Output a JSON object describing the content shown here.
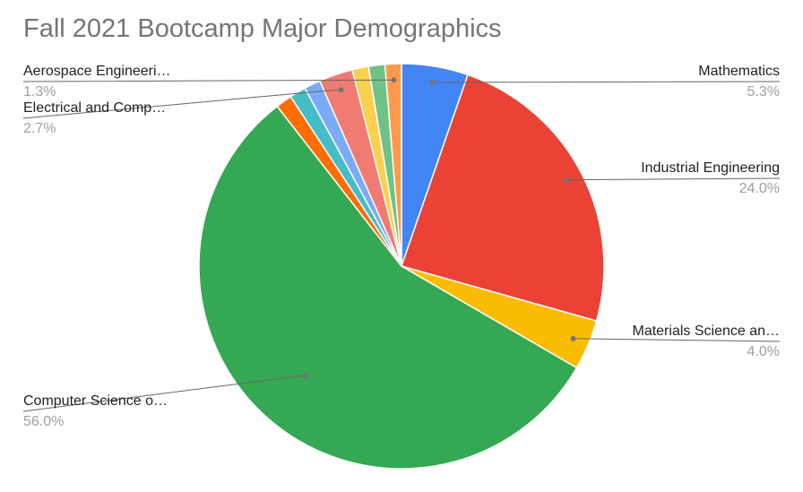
{
  "chart_data": {
    "type": "pie",
    "title": "Fall 2021 Bootcamp Major Demographics",
    "slices": [
      {
        "label": "Mathematics",
        "value": 5.3,
        "pct_label": "5.3%",
        "color": "#4285f4",
        "labeled": true
      },
      {
        "label": "Industrial Engineering",
        "value": 24.0,
        "pct_label": "24.0%",
        "color": "#ea4335",
        "labeled": true
      },
      {
        "label": "Materials Science an…",
        "value": 4.0,
        "pct_label": "4.0%",
        "color": "#fbbc04",
        "labeled": true
      },
      {
        "label": "Computer Science o…",
        "value": 56.0,
        "pct_label": "56.0%",
        "color": "#34a853",
        "labeled": true
      },
      {
        "label": "",
        "value": 1.3,
        "pct_label": "",
        "color": "#ff6d01",
        "labeled": false
      },
      {
        "label": "",
        "value": 1.3,
        "pct_label": "",
        "color": "#46bdc6",
        "labeled": false
      },
      {
        "label": "",
        "value": 1.3,
        "pct_label": "",
        "color": "#7baaf7",
        "labeled": false
      },
      {
        "label": "Electrical and Comp…",
        "value": 2.7,
        "pct_label": "2.7%",
        "color": "#f07b72",
        "labeled": true
      },
      {
        "label": "",
        "value": 1.3,
        "pct_label": "",
        "color": "#fcd04f",
        "labeled": false
      },
      {
        "label": "",
        "value": 1.3,
        "pct_label": "",
        "color": "#71c287",
        "labeled": false
      },
      {
        "label": "Aerospace Engineeri…",
        "value": 1.3,
        "pct_label": "1.3%",
        "color": "#ff994d",
        "labeled": true
      }
    ]
  }
}
